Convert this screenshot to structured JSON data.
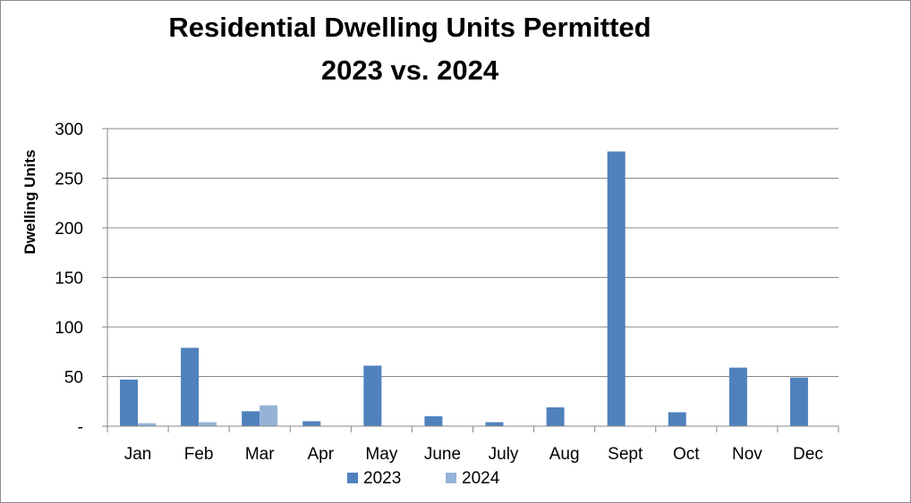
{
  "chart_data": {
    "type": "bar",
    "title": "Residential Dwelling Units Permitted",
    "subtitle": "2023 vs. 2024",
    "xlabel": "",
    "ylabel": "Dwelling Units",
    "ylim": [
      0,
      300
    ],
    "yticks": [
      0,
      50,
      100,
      150,
      200,
      250,
      300
    ],
    "ytick_labels": [
      "-",
      "50",
      "100",
      "150",
      "200",
      "250",
      "300"
    ],
    "grid": true,
    "legend_position": "bottom",
    "categories": [
      "Jan",
      "Feb",
      "Mar",
      "Apr",
      "May",
      "June",
      "July",
      "Aug",
      "Sept",
      "Oct",
      "Nov",
      "Dec"
    ],
    "series": [
      {
        "name": "2023",
        "color": "#4f81bd",
        "values": [
          47,
          79,
          15,
          5,
          61,
          10,
          4,
          19,
          277,
          14,
          59,
          49
        ]
      },
      {
        "name": "2024",
        "color": "#95b3d7",
        "values": [
          3,
          4,
          21,
          0,
          0,
          0,
          0,
          0,
          0,
          0,
          0,
          0
        ]
      }
    ]
  }
}
